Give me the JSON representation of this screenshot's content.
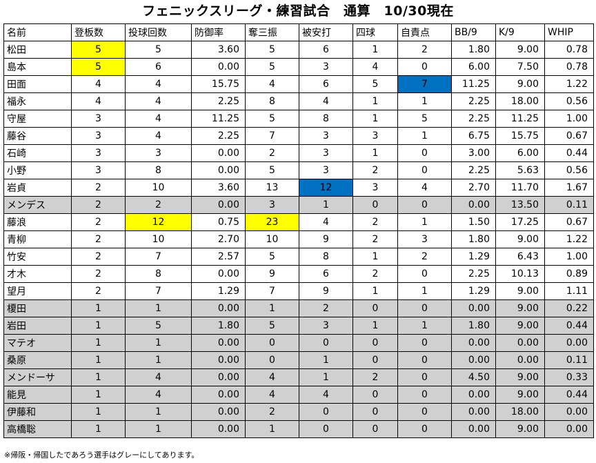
{
  "title": "フェニックスリーグ・練習試合　通算　10/30現在",
  "table": {
    "headers": [
      "名前",
      "登板数",
      "投球回数",
      "防御率",
      "奪三振",
      "被安打",
      "四球",
      "自責点",
      "BB/9",
      "K/9",
      "WHIP"
    ],
    "rows": [
      {
        "cells": [
          "松田",
          "5",
          "5",
          "3.60",
          "5",
          "6",
          "1",
          "2",
          "1.80",
          "9.00",
          "0.78"
        ],
        "gray": false,
        "highlights": {
          "1": "#ffff00"
        }
      },
      {
        "cells": [
          "島本",
          "5",
          "6",
          "0.00",
          "5",
          "3",
          "4",
          "0",
          "6.00",
          "7.50",
          "0.78"
        ],
        "gray": false,
        "highlights": {
          "1": "#ffff00"
        }
      },
      {
        "cells": [
          "田面",
          "4",
          "4",
          "15.75",
          "4",
          "6",
          "5",
          "7",
          "11.25",
          "9.00",
          "1.22"
        ],
        "gray": false,
        "highlights": {
          "7": "#0070c0"
        }
      },
      {
        "cells": [
          "福永",
          "4",
          "4",
          "2.25",
          "8",
          "4",
          "1",
          "1",
          "2.25",
          "18.00",
          "0.56"
        ],
        "gray": false,
        "highlights": {}
      },
      {
        "cells": [
          "守屋",
          "3",
          "4",
          "11.25",
          "5",
          "8",
          "1",
          "5",
          "2.25",
          "11.25",
          "1.00"
        ],
        "gray": false,
        "highlights": {}
      },
      {
        "cells": [
          "藤谷",
          "3",
          "4",
          "2.25",
          "7",
          "3",
          "3",
          "1",
          "6.75",
          "15.75",
          "0.67"
        ],
        "gray": false,
        "highlights": {}
      },
      {
        "cells": [
          "石崎",
          "3",
          "3",
          "0.00",
          "2",
          "3",
          "1",
          "0",
          "3.00",
          "6.00",
          "0.44"
        ],
        "gray": false,
        "highlights": {}
      },
      {
        "cells": [
          "小野",
          "3",
          "8",
          "0.00",
          "5",
          "3",
          "2",
          "0",
          "2.25",
          "5.63",
          "0.56"
        ],
        "gray": false,
        "highlights": {}
      },
      {
        "cells": [
          "岩貞",
          "2",
          "10",
          "3.60",
          "13",
          "12",
          "3",
          "4",
          "2.70",
          "11.70",
          "1.67"
        ],
        "gray": false,
        "highlights": {
          "5": "#0070c0"
        }
      },
      {
        "cells": [
          "メンデス",
          "2",
          "2",
          "0.00",
          "3",
          "1",
          "0",
          "0",
          "0.00",
          "13.50",
          "0.11"
        ],
        "gray": true,
        "highlights": {}
      },
      {
        "cells": [
          "藤浪",
          "2",
          "12",
          "0.75",
          "23",
          "4",
          "2",
          "1",
          "1.50",
          "17.25",
          "0.67"
        ],
        "gray": false,
        "highlights": {
          "2": "#ffff00",
          "4": "#ffff00"
        }
      },
      {
        "cells": [
          "青柳",
          "2",
          "10",
          "2.70",
          "10",
          "9",
          "2",
          "3",
          "1.80",
          "9.00",
          "1.22"
        ],
        "gray": false,
        "highlights": {}
      },
      {
        "cells": [
          "竹安",
          "2",
          "7",
          "2.57",
          "5",
          "8",
          "1",
          "2",
          "1.29",
          "6.43",
          "1.00"
        ],
        "gray": false,
        "highlights": {}
      },
      {
        "cells": [
          "才木",
          "2",
          "8",
          "0.00",
          "9",
          "6",
          "2",
          "0",
          "2.25",
          "10.13",
          "0.89"
        ],
        "gray": false,
        "highlights": {}
      },
      {
        "cells": [
          "望月",
          "2",
          "7",
          "1.29",
          "7",
          "9",
          "1",
          "1",
          "1.29",
          "9.00",
          "1.11"
        ],
        "gray": false,
        "highlights": {}
      },
      {
        "cells": [
          "榎田",
          "1",
          "1",
          "0.00",
          "1",
          "2",
          "0",
          "0",
          "0.00",
          "9.00",
          "0.22"
        ],
        "gray": true,
        "highlights": {}
      },
      {
        "cells": [
          "岩田",
          "1",
          "5",
          "1.80",
          "5",
          "3",
          "1",
          "1",
          "1.80",
          "9.00",
          "0.44"
        ],
        "gray": true,
        "highlights": {}
      },
      {
        "cells": [
          "マテオ",
          "1",
          "1",
          "0.00",
          "0",
          "0",
          "0",
          "0",
          "0.00",
          "0.00",
          "0.00"
        ],
        "gray": true,
        "highlights": {}
      },
      {
        "cells": [
          "桑原",
          "1",
          "1",
          "0.00",
          "0",
          "1",
          "0",
          "0",
          "0.00",
          "0.00",
          "0.11"
        ],
        "gray": true,
        "highlights": {}
      },
      {
        "cells": [
          "メンドーサ",
          "1",
          "4",
          "0.00",
          "4",
          "1",
          "2",
          "0",
          "4.50",
          "9.00",
          "0.33"
        ],
        "gray": true,
        "highlights": {}
      },
      {
        "cells": [
          "能見",
          "1",
          "4",
          "0.00",
          "4",
          "4",
          "0",
          "0",
          "0.00",
          "9.00",
          "0.44"
        ],
        "gray": true,
        "highlights": {}
      },
      {
        "cells": [
          "伊藤和",
          "1",
          "1",
          "0.00",
          "2",
          "0",
          "0",
          "0",
          "0.00",
          "18.00",
          "0.00"
        ],
        "gray": true,
        "highlights": {}
      },
      {
        "cells": [
          "高橋聡",
          "1",
          "1",
          "0.00",
          "1",
          "0",
          "0",
          "0",
          "0.00",
          "9.00",
          "0.00"
        ],
        "gray": true,
        "highlights": {}
      }
    ]
  },
  "footnote": "※帰阪・帰国したであろう選手はグレーにしてあります。"
}
